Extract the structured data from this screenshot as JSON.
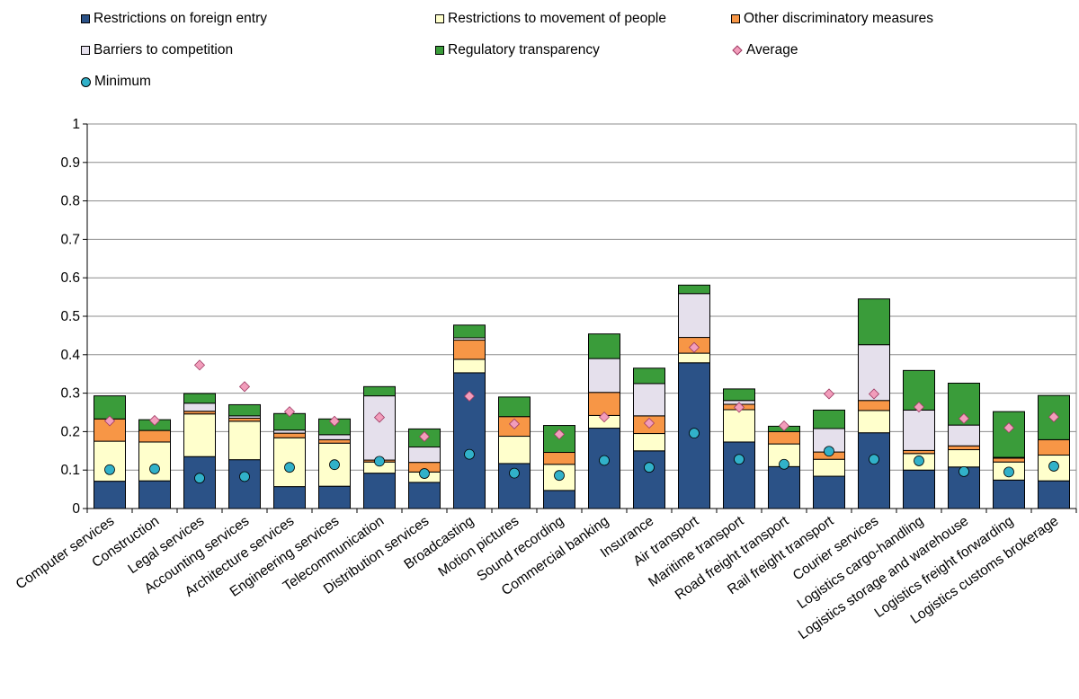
{
  "chart_data": {
    "type": "bar",
    "stacked": true,
    "title": "",
    "xlabel": "",
    "ylabel": "",
    "ylim": [
      0,
      1
    ],
    "yticks": [
      "0",
      "0.1",
      "0.2",
      "0.3",
      "0.4",
      "0.5",
      "0.6",
      "0.7",
      "0.8",
      "0.9",
      "1"
    ],
    "grid": true,
    "legend_position": "top",
    "categories": [
      "Computer services",
      "Construction",
      "Legal services",
      "Accounting services",
      "Architecture services",
      "Engineering services",
      "Telecommunication",
      "Distribution services",
      "Broadcasting",
      "Motion pictures",
      "Sound recording",
      "Commercial banking",
      "Insurance",
      "Air transport",
      "Maritime transport",
      "Road freight transport",
      "Rail freight transport",
      "Courier services",
      "Logistics cargo-handling",
      "Logistics storage and warehouse",
      "Logistics freight forwarding",
      "Logistics customs brokerage"
    ],
    "series": [
      {
        "name": "Restrictions on foreign entry",
        "color": "#2b5287",
        "values": [
          0.071,
          0.072,
          0.135,
          0.127,
          0.057,
          0.058,
          0.092,
          0.068,
          0.353,
          0.117,
          0.047,
          0.209,
          0.15,
          0.379,
          0.173,
          0.109,
          0.084,
          0.197,
          0.1,
          0.108,
          0.074,
          0.072
        ]
      },
      {
        "name": "Restrictions to movement of people",
        "color": "#ffffcc",
        "values": [
          0.104,
          0.101,
          0.111,
          0.1,
          0.127,
          0.112,
          0.029,
          0.027,
          0.035,
          0.071,
          0.068,
          0.033,
          0.045,
          0.025,
          0.084,
          0.059,
          0.044,
          0.058,
          0.043,
          0.045,
          0.047,
          0.067
        ]
      },
      {
        "name": "Other discriminatory measures",
        "color": "#f79646",
        "values": [
          0.058,
          0.03,
          0.007,
          0.008,
          0.012,
          0.009,
          0.005,
          0.025,
          0.05,
          0.051,
          0.031,
          0.06,
          0.046,
          0.041,
          0.014,
          0.032,
          0.019,
          0.026,
          0.008,
          0.01,
          0.01,
          0.04
        ]
      },
      {
        "name": "Barriers to competition",
        "color": "#e5e0ec",
        "values": [
          0.0,
          0.0,
          0.021,
          0.006,
          0.008,
          0.013,
          0.167,
          0.04,
          0.006,
          0.0,
          0.0,
          0.088,
          0.084,
          0.114,
          0.01,
          0.0,
          0.061,
          0.145,
          0.105,
          0.054,
          0.002,
          0.0
        ]
      },
      {
        "name": "Regulatory transparency",
        "color": "#3a9c3a",
        "values": [
          0.06,
          0.028,
          0.025,
          0.029,
          0.043,
          0.041,
          0.024,
          0.047,
          0.033,
          0.051,
          0.07,
          0.064,
          0.04,
          0.022,
          0.03,
          0.014,
          0.048,
          0.119,
          0.103,
          0.109,
          0.119,
          0.115
        ]
      }
    ],
    "markers": [
      {
        "name": "Average",
        "color": "#f29dbb",
        "shape": "diamond",
        "values": [
          0.228,
          0.229,
          0.373,
          0.317,
          0.252,
          0.227,
          0.237,
          0.187,
          0.292,
          0.22,
          0.193,
          0.238,
          0.222,
          0.419,
          0.263,
          0.215,
          0.298,
          0.298,
          0.264,
          0.234,
          0.21,
          0.238
        ]
      },
      {
        "name": "Minimum",
        "color": "#31b1c9",
        "shape": "circle",
        "values": [
          0.101,
          0.103,
          0.079,
          0.083,
          0.107,
          0.114,
          0.123,
          0.091,
          0.141,
          0.092,
          0.086,
          0.125,
          0.107,
          0.196,
          0.128,
          0.115,
          0.149,
          0.128,
          0.124,
          0.096,
          0.095,
          0.11
        ]
      }
    ]
  }
}
